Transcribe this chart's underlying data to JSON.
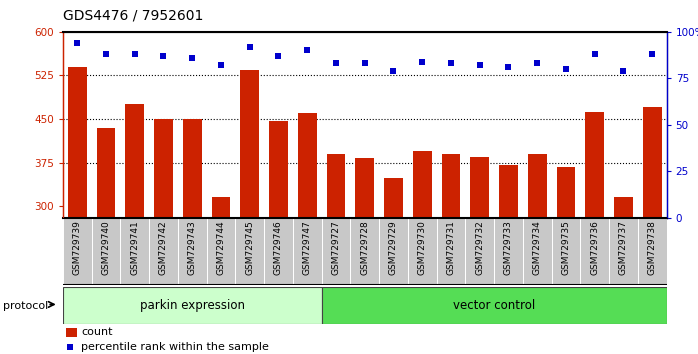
{
  "title": "GDS4476 / 7952601",
  "samples": [
    "GSM729739",
    "GSM729740",
    "GSM729741",
    "GSM729742",
    "GSM729743",
    "GSM729744",
    "GSM729745",
    "GSM729746",
    "GSM729747",
    "GSM729727",
    "GSM729728",
    "GSM729729",
    "GSM729730",
    "GSM729731",
    "GSM729732",
    "GSM729733",
    "GSM729734",
    "GSM729735",
    "GSM729736",
    "GSM729737",
    "GSM729738"
  ],
  "counts": [
    540,
    435,
    475,
    450,
    450,
    315,
    535,
    447,
    460,
    390,
    383,
    348,
    395,
    390,
    385,
    370,
    390,
    368,
    462,
    315,
    470
  ],
  "percentiles": [
    94,
    88,
    88,
    87,
    86,
    82,
    92,
    87,
    90,
    83,
    83,
    79,
    84,
    83,
    82,
    81,
    83,
    80,
    88,
    79,
    88
  ],
  "parkin_count": 9,
  "bar_color": "#cc2200",
  "dot_color": "#0000cc",
  "ylim_left": [
    280,
    600
  ],
  "ylim_right": [
    0,
    100
  ],
  "yticks_left": [
    300,
    375,
    450,
    525,
    600
  ],
  "yticks_right": [
    0,
    25,
    50,
    75,
    100
  ],
  "parkin_fill": "#ccffcc",
  "vector_fill": "#55dd55",
  "protocol_label": "protocol",
  "parkin_label": "parkin expression",
  "vector_label": "vector control",
  "legend_count": "count",
  "legend_pct": "percentile rank within the sample",
  "title_fontsize": 10,
  "axis_fontsize": 7.5,
  "tick_fontsize": 6.5,
  "label_fontsize": 8.5
}
